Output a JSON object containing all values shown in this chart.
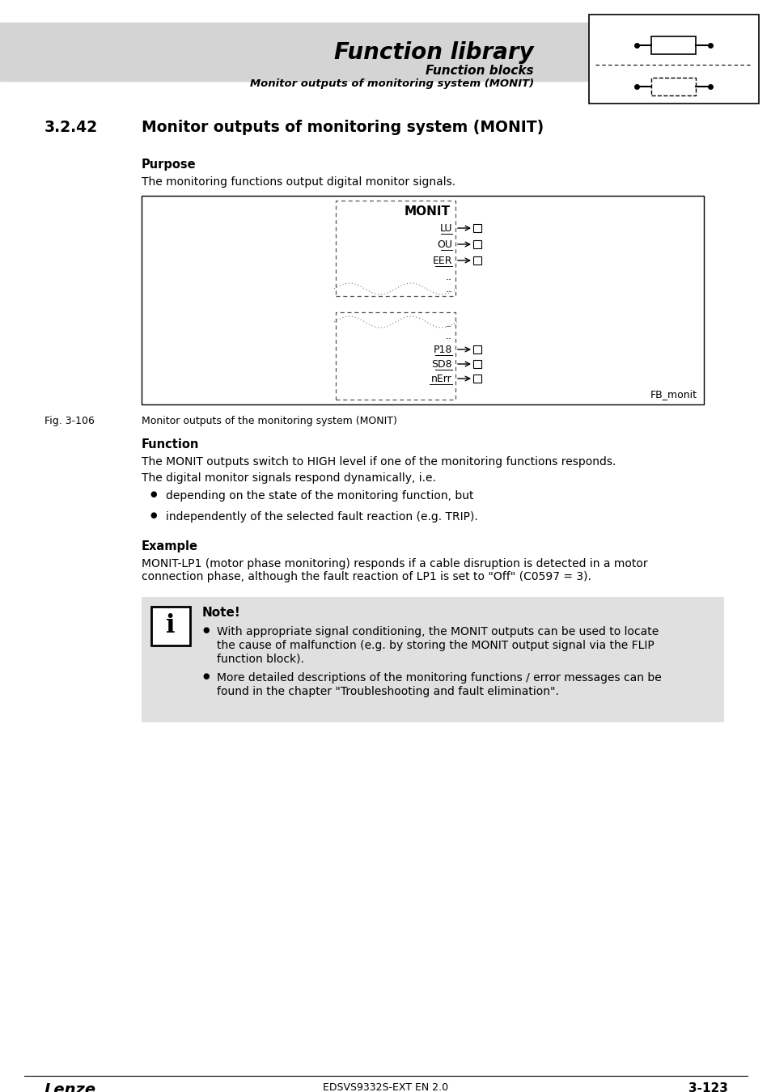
{
  "page_bg": "#ffffff",
  "header_bg": "#d4d4d4",
  "header_title": "Function library",
  "header_sub1": "Function blocks",
  "header_sub2": "Monitor outputs of monitoring system (MONIT)",
  "section_number": "3.2.42",
  "section_title": "Monitor outputs of monitoring system (MONIT)",
  "purpose_label": "Purpose",
  "purpose_text": "The monitoring functions output digital monitor signals.",
  "block_label": "MONIT",
  "outputs_top": [
    "LU",
    "OU",
    "EER"
  ],
  "dots_top": [
    "..",
    ".."
  ],
  "outputs_bottom": [
    "P18",
    "SD8",
    "nErr"
  ],
  "dots_bottom": [
    "..",
    ".."
  ],
  "fb_label": "FB_monit",
  "fig_label": "Fig. 3-106",
  "fig_caption": "Monitor outputs of the monitoring system (MONIT)",
  "function_label": "Function",
  "function_text1": "The MONIT outputs switch to HIGH level if one of the monitoring functions responds.",
  "function_text2": "The digital monitor signals respond dynamically, i.e.",
  "bullet1": "depending on the state of the monitoring function, but",
  "bullet2": "independently of the selected fault reaction (e.g. TRIP).",
  "example_label": "Example",
  "example_text1": "MONIT-LP1 (motor phase monitoring) responds if a cable disruption is detected in a motor",
  "example_text2": "connection phase, although the fault reaction of LP1 is set to \"Off\" (C0597 = 3).",
  "note_bg": "#e0e0e0",
  "note_label": "Note!",
  "note_bullet1a": "With appropriate signal conditioning, the MONIT outputs can be used to locate",
  "note_bullet1b": "the cause of malfunction (e.g. by storing the MONIT output signal via the FLIP",
  "note_bullet1c": "function block).",
  "note_bullet2a": "More detailed descriptions of the monitoring functions / error messages can be",
  "note_bullet2b": "found in the chapter \"Troubleshooting and fault elimination\".",
  "footer_left": "Lenze",
  "footer_center": "EDSVS9332S-EXT EN 2.0",
  "footer_right": "3-123"
}
